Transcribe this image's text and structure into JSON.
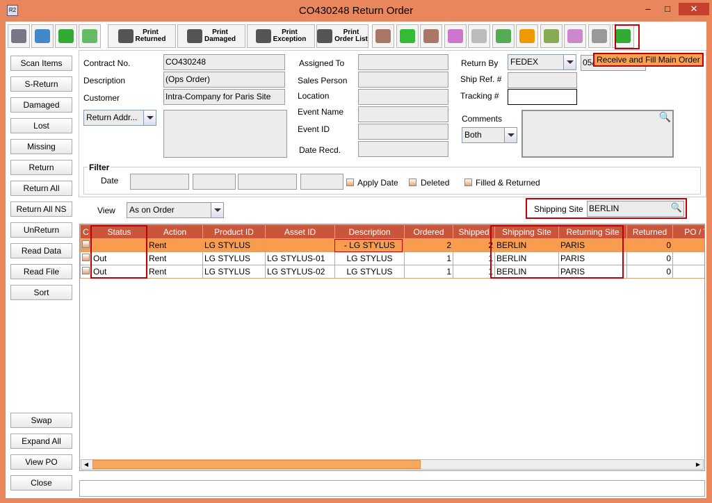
{
  "window": {
    "title": "CO430248 Return Order",
    "app_icon": "R2",
    "minimize": "–",
    "maximize": "□",
    "close": "✕"
  },
  "toolbar": {
    "icons_left": [
      "binoculars-icon",
      "printer-icon",
      "refresh-icon",
      "zoom-icon"
    ],
    "print_buttons": [
      [
        "Print",
        "Returned"
      ],
      [
        "Print",
        "Damaged"
      ],
      [
        "Print",
        "Exception"
      ],
      [
        "Print",
        "Order List"
      ]
    ],
    "icons_right": [
      "scanner-icon",
      "add-icon",
      "scanner-alert-icon",
      "calendar-icon",
      "funnel-icon",
      "filter-check-icon",
      "document-warning-icon",
      "edit-icon",
      "grid-icon",
      "gauge-icon",
      "receive-fill-icon"
    ],
    "tooltip": "Receive and Fill Main Order"
  },
  "sidebar": [
    "Scan Items",
    "S-Return",
    "Damaged",
    "Lost",
    "Missing",
    "Return",
    "Return All",
    "Return All NS",
    "UnReturn",
    "Read Data",
    "Read File",
    "Sort"
  ],
  "sidebar_bottom": [
    "Swap",
    "Expand All",
    "View PO",
    "Close"
  ],
  "form": {
    "contract_label": "Contract No.",
    "contract": "CO430248",
    "description_label": "Description",
    "description": "(Ops Order)",
    "customer_label": "Customer",
    "customer": "Intra-Company for Paris Site",
    "return_addr": "Return Addr...",
    "assigned_to": "Assigned To",
    "sales_person": "Sales Person",
    "location": "Location",
    "event_name": "Event Name",
    "event_id": "Event ID",
    "date_recd": "Date Recd.",
    "return_by_label": "Return By",
    "return_by": "FEDEX",
    "return_date": "05/",
    "ship_ref_label": "Ship Ref. #",
    "tracking_label": "Tracking #",
    "comments_label": "Comments",
    "comments_filter": "Both"
  },
  "filter": {
    "title": "Filter",
    "date_label": "Date",
    "apply_date": "Apply Date",
    "deleted": "Deleted",
    "filled_returned": "Filled & Returned"
  },
  "view": {
    "label": "View",
    "value": "As on Order",
    "shipping_site_label": "Shipping Site",
    "shipping_site": "BERLIN"
  },
  "grid": {
    "columns": [
      "C",
      "Status",
      "Action",
      "Product ID",
      "Asset ID",
      "Description",
      "Ordered",
      "Shipped",
      "Shipping Site",
      "Returning Site",
      "Returned",
      "PO / T"
    ],
    "rows": [
      [
        "",
        "",
        "Rent",
        "LG STYLUS",
        "",
        "- LG STYLUS",
        "2",
        "2",
        "BERLIN",
        "PARIS",
        "0",
        ""
      ],
      [
        "",
        "Out",
        "Rent",
        "LG STYLUS",
        "LG STYLUS-01",
        "LG STYLUS",
        "1",
        "1",
        "BERLIN",
        "PARIS",
        "0",
        ""
      ],
      [
        "",
        "Out",
        "Rent",
        "LG STYLUS",
        "LG STYLUS-02",
        "LG STYLUS",
        "1",
        "1",
        "BERLIN",
        "PARIS",
        "0",
        ""
      ]
    ],
    "selected_row": 0
  },
  "colors": {
    "accent": "#e9865c",
    "header": "#c9553a",
    "selected": "#f89d50",
    "highlight": "#c00000"
  }
}
